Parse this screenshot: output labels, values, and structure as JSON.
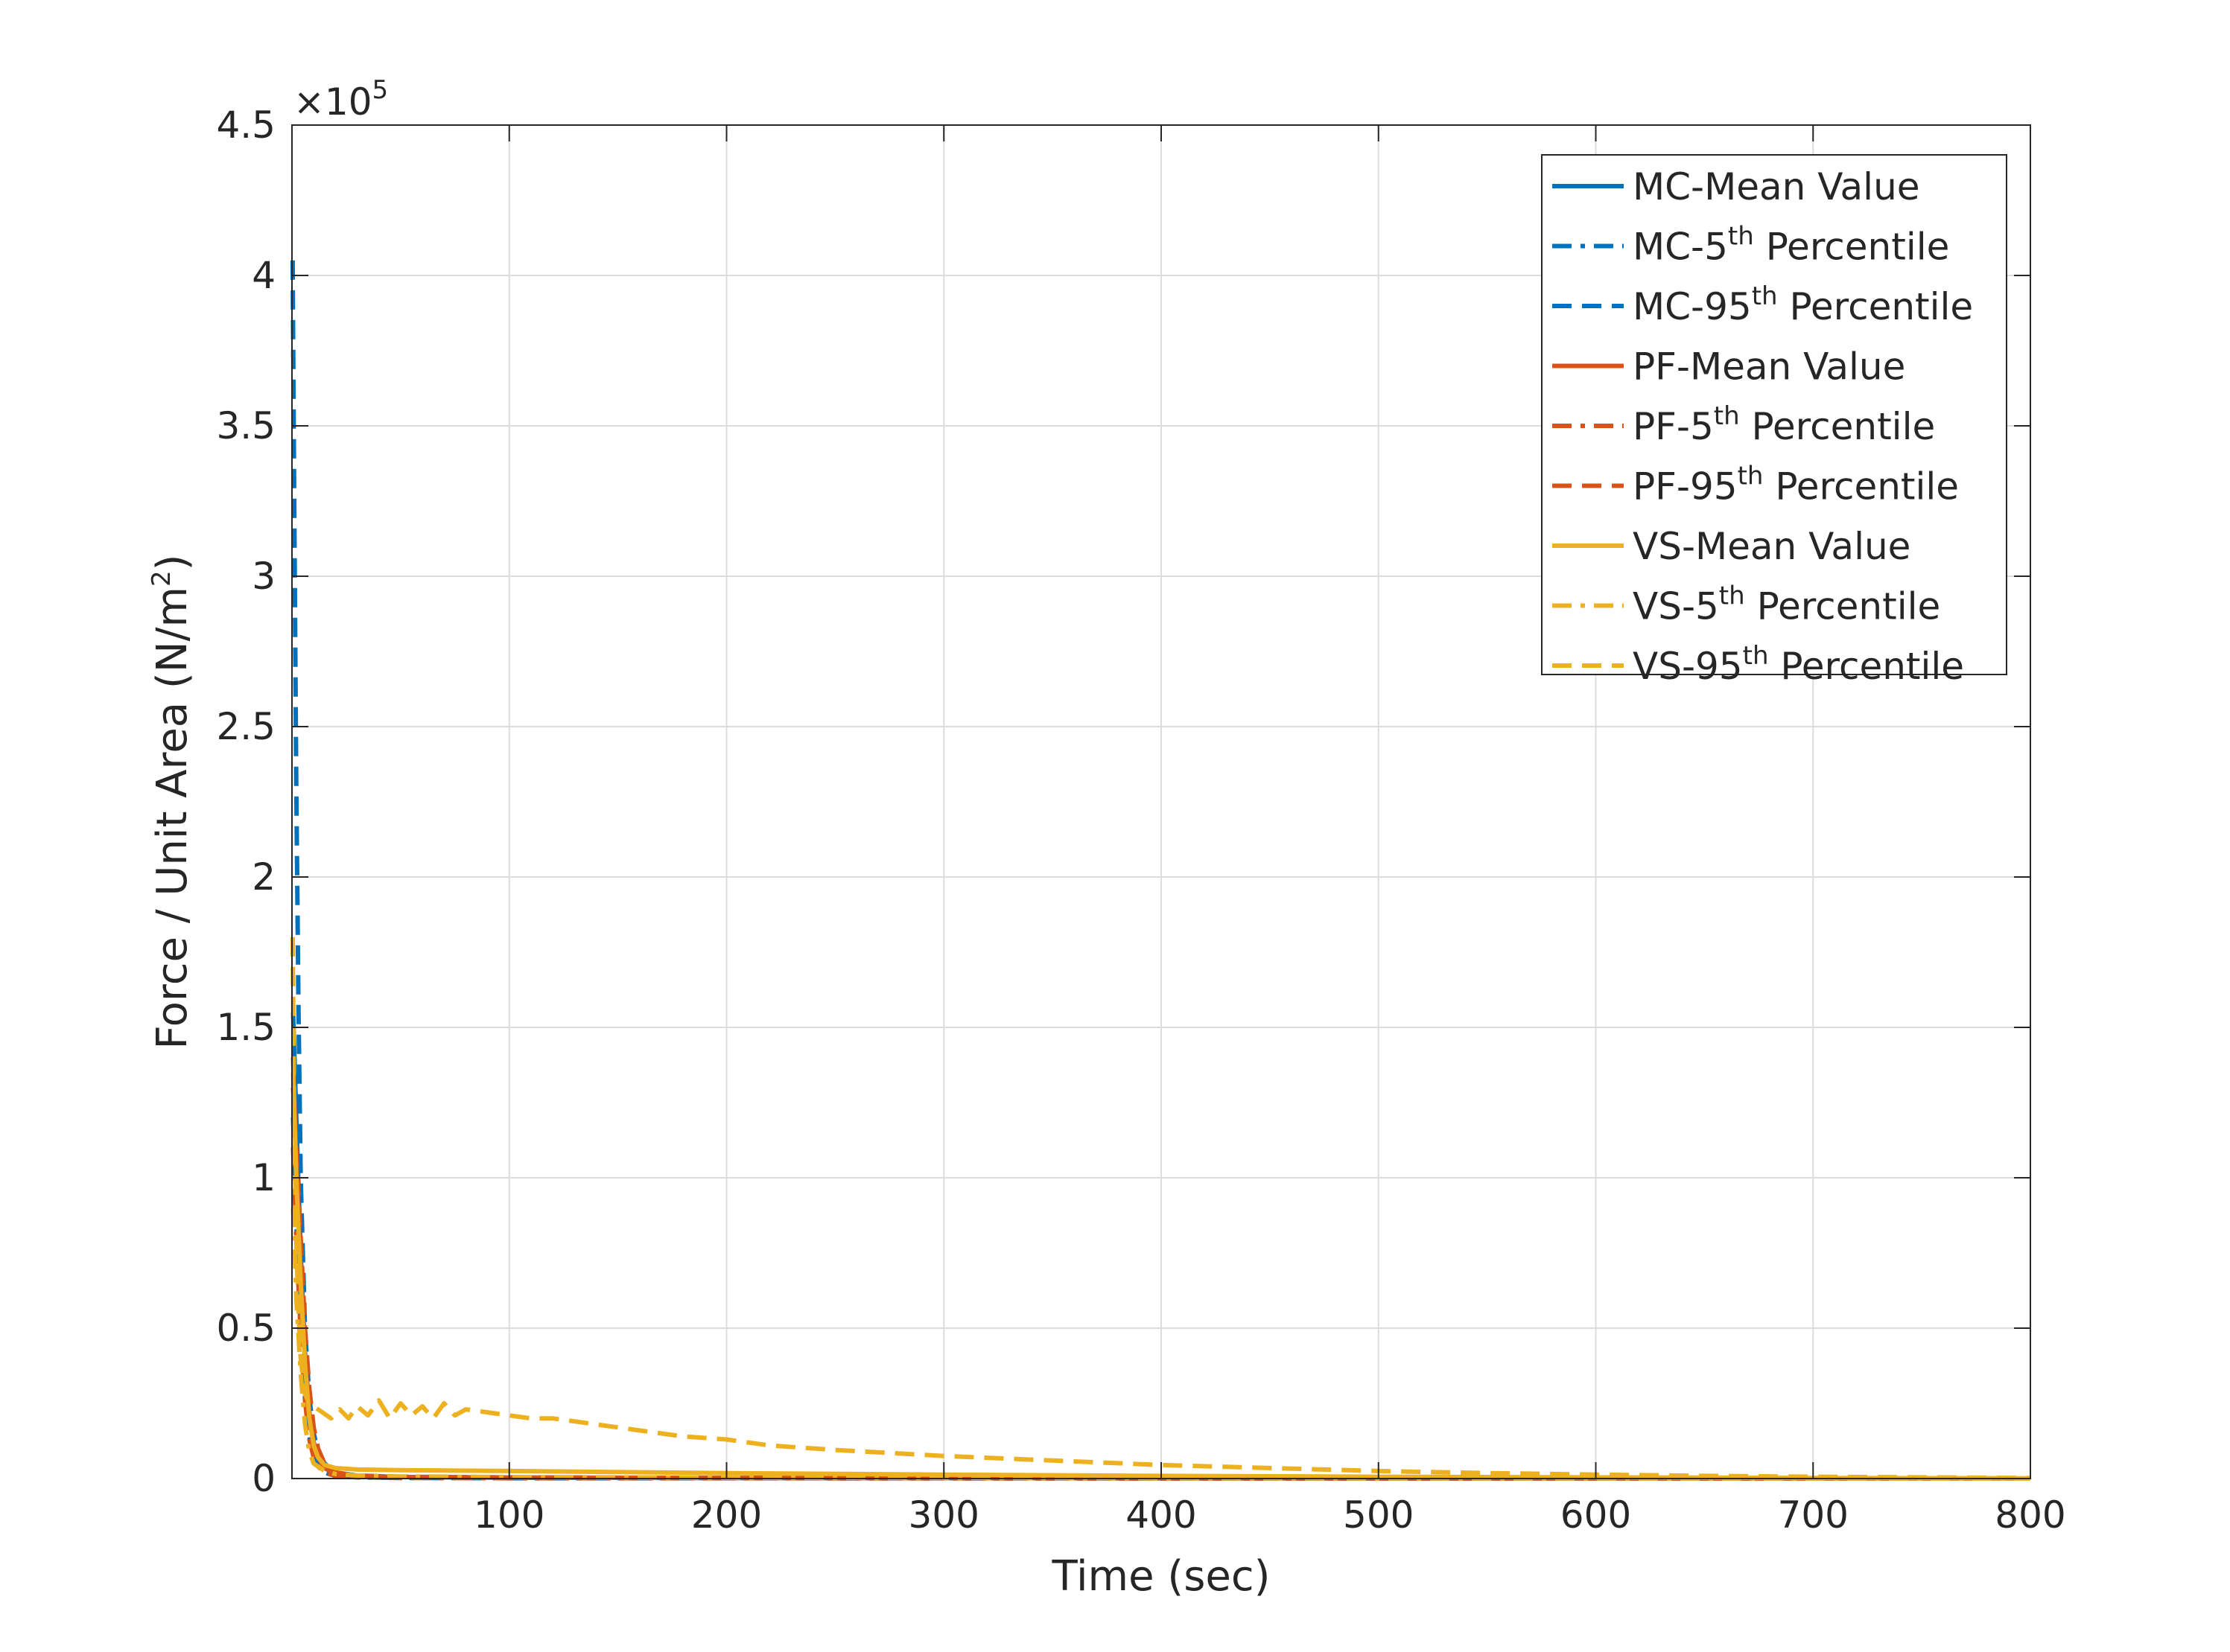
{
  "chart_data": {
    "type": "line",
    "xlabel": "Time (sec)",
    "ylabel_main": "Force / Unit Area (N/m",
    "ylabel_sup": "2",
    "ylabel_close": ")",
    "exponent_base": "×10",
    "exponent_power": "5",
    "xlim": [
      0,
      800
    ],
    "ylim": [
      0,
      4.5
    ],
    "y_scale_note": "x10^5",
    "xticks": [
      100,
      200,
      300,
      400,
      500,
      600,
      700,
      800
    ],
    "xtick_labels": [
      "100",
      "200",
      "300",
      "400",
      "500",
      "600",
      "700",
      "800"
    ],
    "yticks": [
      0,
      0.5,
      1,
      1.5,
      2,
      2.5,
      3,
      3.5,
      4,
      4.5
    ],
    "ytick_labels": [
      "0",
      "0.5",
      "1",
      "1.5",
      "2",
      "2.5",
      "3",
      "3.5",
      "4",
      "4.5"
    ],
    "grid": true,
    "legend_position": "top-right",
    "colors": {
      "MC": "#0072BD",
      "PF": "#D95319",
      "VS": "#EDB120",
      "grid": "#dcdcdc",
      "axis": "#262626"
    },
    "series": [
      {
        "name_pre": "MC-Mean Value",
        "name_sup": "",
        "name_post": "",
        "color": "#0072BD",
        "style": "solid",
        "x": [
          0.5,
          2,
          4,
          6,
          8,
          10,
          12,
          15,
          20,
          30,
          50,
          100,
          200,
          400,
          800
        ],
        "y": [
          1.55,
          1.2,
          0.75,
          0.42,
          0.22,
          0.12,
          0.07,
          0.035,
          0.015,
          0.008,
          0.005,
          0.003,
          0.002,
          0.001,
          0.0
        ]
      },
      {
        "name_pre": "MC-5",
        "name_sup": "th",
        "name_post": " Percentile",
        "color": "#0072BD",
        "style": "dashdot",
        "x": [
          0.5,
          2,
          4,
          6,
          8,
          10,
          12,
          15,
          20,
          30,
          50,
          100,
          200,
          400,
          800
        ],
        "y": [
          1.2,
          0.85,
          0.5,
          0.27,
          0.14,
          0.07,
          0.04,
          0.02,
          0.008,
          0.004,
          0.002,
          0.001,
          0.001,
          0.0,
          0.0
        ]
      },
      {
        "name_pre": "MC-95",
        "name_sup": "th",
        "name_post": " Percentile",
        "color": "#0072BD",
        "style": "dashed",
        "x": [
          0.3,
          1,
          2,
          3,
          4,
          6,
          8,
          10,
          12,
          15,
          20,
          30,
          50,
          100,
          200,
          400,
          800
        ],
        "y": [
          4.05,
          3.3,
          2.3,
          1.55,
          1.0,
          0.5,
          0.27,
          0.15,
          0.09,
          0.05,
          0.02,
          0.01,
          0.005,
          0.003,
          0.002,
          0.001,
          0.0
        ]
      },
      {
        "name_pre": "PF-Mean Value",
        "name_sup": "",
        "name_post": "",
        "color": "#D95319",
        "style": "solid",
        "x": [
          0.5,
          2,
          4,
          6,
          8,
          10,
          12,
          15,
          20,
          30,
          50,
          100,
          200,
          400,
          800
        ],
        "y": [
          1.4,
          1.05,
          0.7,
          0.4,
          0.22,
          0.12,
          0.07,
          0.035,
          0.015,
          0.008,
          0.005,
          0.003,
          0.002,
          0.001,
          0.0
        ]
      },
      {
        "name_pre": "PF-5",
        "name_sup": "th",
        "name_post": " Percentile",
        "color": "#D95319",
        "style": "dashdot",
        "x": [
          0.5,
          2,
          4,
          6,
          8,
          10,
          12,
          15,
          20,
          30,
          50,
          100,
          200,
          400,
          800
        ],
        "y": [
          1.1,
          0.8,
          0.48,
          0.26,
          0.13,
          0.07,
          0.04,
          0.02,
          0.008,
          0.004,
          0.002,
          0.001,
          0.001,
          0.0,
          0.0
        ]
      },
      {
        "name_pre": "PF-95",
        "name_sup": "th",
        "name_post": " Percentile",
        "color": "#D95319",
        "style": "dashed",
        "x": [
          0.5,
          2,
          4,
          6,
          8,
          10,
          12,
          15,
          20,
          30,
          50,
          100,
          200,
          400,
          800
        ],
        "y": [
          1.3,
          1.1,
          0.8,
          0.5,
          0.3,
          0.17,
          0.1,
          0.05,
          0.02,
          0.01,
          0.006,
          0.004,
          0.002,
          0.001,
          0.0
        ]
      },
      {
        "name_pre": "VS-Mean Value",
        "name_sup": "",
        "name_post": "",
        "color": "#EDB120",
        "style": "solid",
        "x": [
          0.5,
          2,
          4,
          6,
          8,
          10,
          12,
          15,
          20,
          30,
          50,
          100,
          200,
          300,
          400,
          500,
          600,
          700,
          800
        ],
        "y": [
          1.35,
          1.0,
          0.65,
          0.38,
          0.2,
          0.11,
          0.07,
          0.045,
          0.035,
          0.03,
          0.028,
          0.025,
          0.018,
          0.013,
          0.009,
          0.006,
          0.004,
          0.002,
          0.001
        ]
      },
      {
        "name_pre": "VS-5",
        "name_sup": "th",
        "name_post": " Percentile",
        "color": "#EDB120",
        "style": "dashdot",
        "x": [
          0.5,
          2,
          4,
          6,
          8,
          10,
          15,
          20,
          30,
          50,
          100,
          200,
          400,
          800
        ],
        "y": [
          0.9,
          0.6,
          0.35,
          0.18,
          0.09,
          0.05,
          0.025,
          0.015,
          0.01,
          0.007,
          0.005,
          0.003,
          0.001,
          0.0
        ]
      },
      {
        "name_pre": "VS-95",
        "name_sup": "th",
        "name_post": " Percentile",
        "color": "#EDB120",
        "style": "dashed",
        "x": [
          0.3,
          1,
          2,
          3,
          4,
          6,
          8,
          10,
          14,
          18,
          22,
          26,
          30,
          35,
          40,
          45,
          50,
          55,
          60,
          65,
          70,
          75,
          80,
          90,
          100,
          110,
          120,
          130,
          140,
          150,
          160,
          180,
          200,
          220,
          250,
          300,
          350,
          400,
          450,
          500,
          550,
          600,
          650,
          700,
          750,
          800
        ],
        "y": [
          1.8,
          1.2,
          0.8,
          0.55,
          0.4,
          0.28,
          0.25,
          0.24,
          0.22,
          0.2,
          0.23,
          0.2,
          0.24,
          0.21,
          0.26,
          0.2,
          0.25,
          0.21,
          0.24,
          0.2,
          0.25,
          0.21,
          0.23,
          0.22,
          0.21,
          0.2,
          0.2,
          0.19,
          0.18,
          0.17,
          0.16,
          0.14,
          0.13,
          0.11,
          0.095,
          0.075,
          0.06,
          0.045,
          0.035,
          0.025,
          0.018,
          0.013,
          0.009,
          0.006,
          0.004,
          0.002
        ]
      }
    ]
  }
}
